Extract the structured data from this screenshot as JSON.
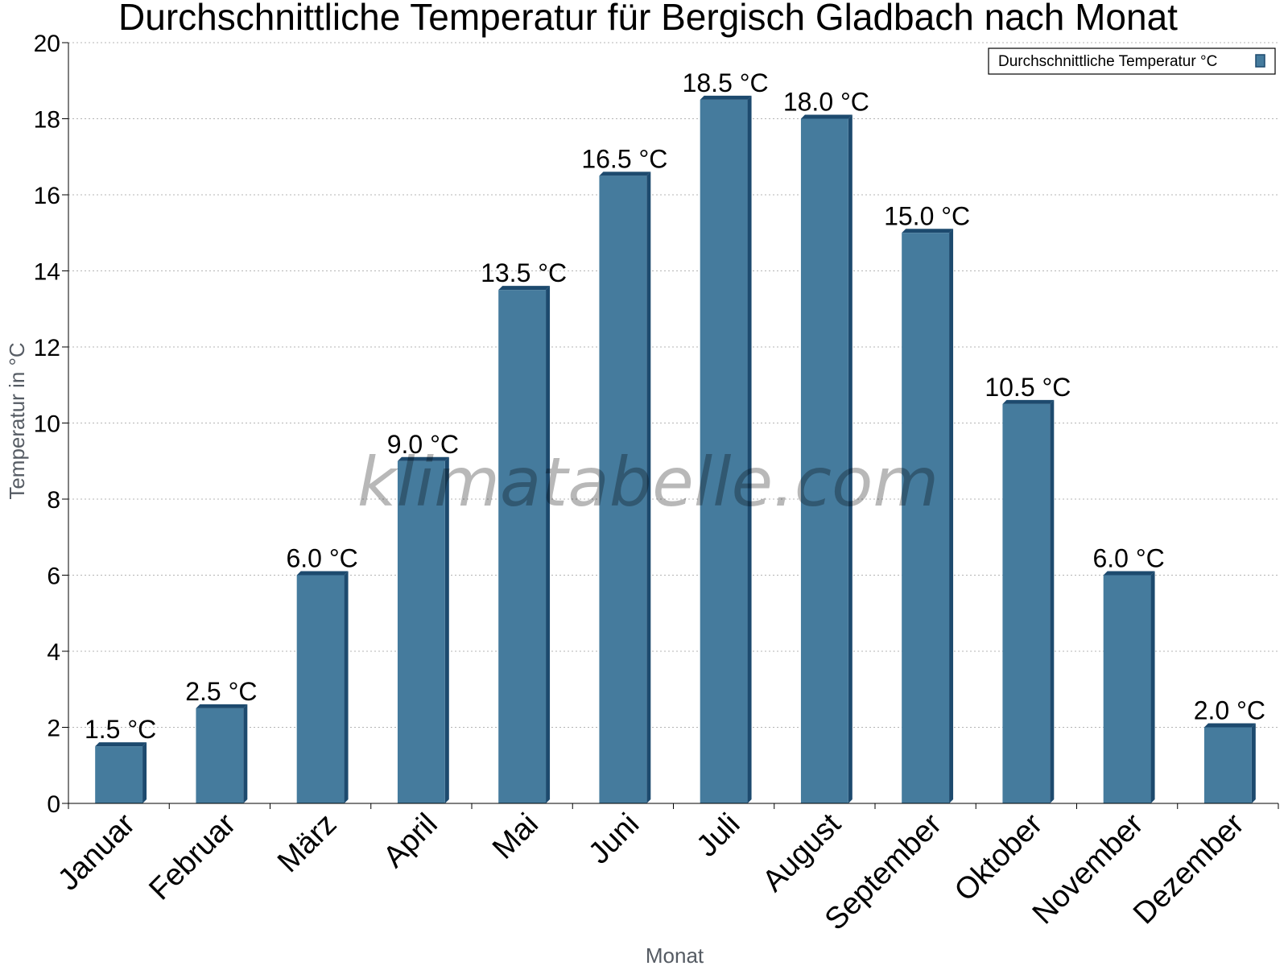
{
  "chart_data": {
    "type": "bar",
    "title": "Durchschnittliche Temperatur für Bergisch Gladbach nach Monat",
    "xlabel": "Monat",
    "ylabel": "Temperatur in °C",
    "categories": [
      "Januar",
      "Februar",
      "März",
      "April",
      "Mai",
      "Juni",
      "Juli",
      "August",
      "September",
      "Oktober",
      "November",
      "Dezember"
    ],
    "series": [
      {
        "name": "Durchschnittliche Temperatur °C",
        "values": [
          1.5,
          2.5,
          6.0,
          9.0,
          13.5,
          16.5,
          18.5,
          18.0,
          15.0,
          10.5,
          6.0,
          2.0
        ],
        "labels": [
          "1.5 °C",
          "2.5 °C",
          "6.0 °C",
          "9.0 °C",
          "13.5 °C",
          "16.5 °C",
          "18.5 °C",
          "18.0 °C",
          "15.0 °C",
          "10.5 °C",
          "6.0 °C",
          "2.0 °C"
        ],
        "color": "#457b9d",
        "shadow_color": "#1d4a6e"
      }
    ],
    "ylim": [
      0,
      20
    ],
    "yticks": [
      0,
      2,
      4,
      6,
      8,
      10,
      12,
      14,
      16,
      18,
      20
    ],
    "grid": true,
    "legend_position": "top-right",
    "watermark": "klimatabelle.com"
  }
}
